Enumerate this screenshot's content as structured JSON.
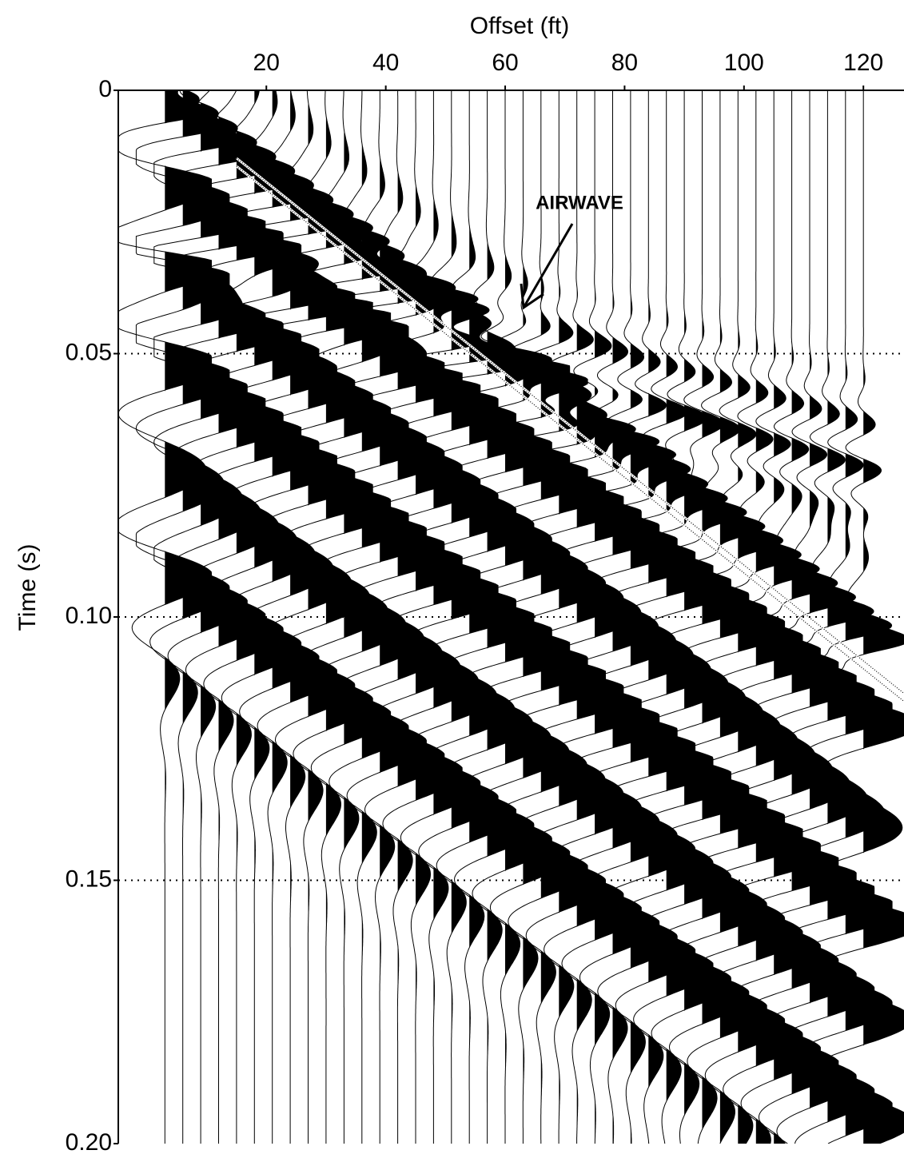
{
  "chart_data": {
    "type": "seismic",
    "x_label": "Offset (ft)",
    "y_label": "Time (s)",
    "xlim": [
      -4.8,
      126.8
    ],
    "xticks": [
      20,
      40,
      60,
      80,
      100,
      120
    ],
    "ylim": [
      0,
      0.2
    ],
    "y_inverted": true,
    "yticks": [
      0,
      0.05,
      {
        "value": 0.1,
        "label": "0.10"
      },
      0.15,
      {
        "value": 0.2,
        "label": "0.20"
      }
    ],
    "grid": true,
    "color": "#000000",
    "traces": {
      "offsets": [
        3,
        6,
        9,
        12,
        15,
        18,
        21,
        24,
        27,
        30,
        33,
        36,
        39,
        42,
        45,
        48,
        51,
        54,
        57,
        60,
        63,
        66,
        69,
        72,
        75,
        78,
        81,
        84,
        87,
        90,
        93,
        96,
        99,
        102,
        105,
        108,
        111,
        114,
        117,
        120
      ]
    },
    "events": [
      {
        "t0": 0.0,
        "velocity": 1100,
        "frequency": 150,
        "amplitude": 0.35
      },
      {
        "t0": 0.012,
        "velocity": 1150,
        "frequency": 60,
        "amplitude": 1.2
      },
      {
        "t0": 0.045,
        "velocity": 1100,
        "frequency": 55,
        "amplitude": 1.2
      },
      {
        "t0": 0.085,
        "velocity": 1130,
        "frequency": 50,
        "amplitude": 1.1
      },
      {
        "t0": 0.03,
        "velocity": 3000,
        "frequency": 110,
        "amplitude": 0.4
      }
    ],
    "annotation": {
      "text": "AIRWAVE"
    }
  }
}
